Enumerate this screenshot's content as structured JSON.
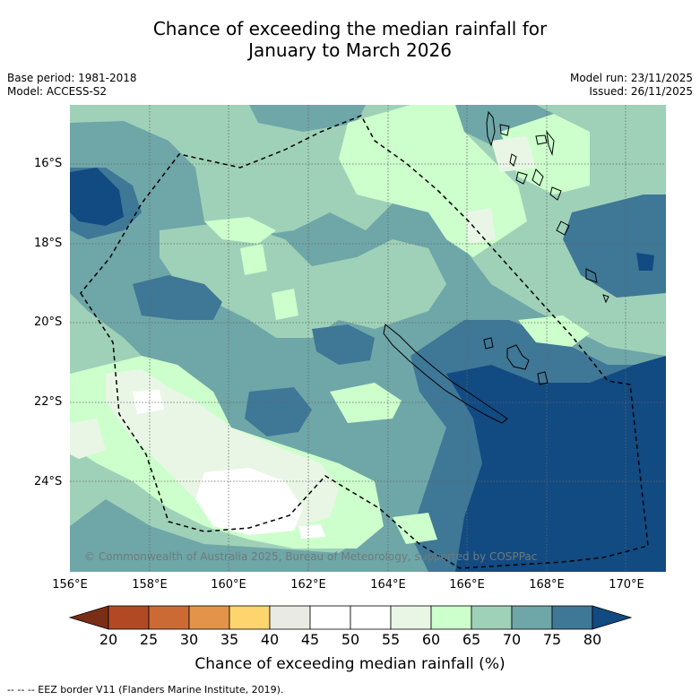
{
  "title": {
    "line1": "Chance of exceeding the median rainfall for",
    "line2": "January to March 2026"
  },
  "meta_left": {
    "base_period": "Base period: 1981-2018",
    "model": "Model: ACCESS-S2"
  },
  "meta_right": {
    "model_run": "Model run: 23/11/2025",
    "issued": "Issued: 26/11/2025"
  },
  "map": {
    "lat_labels": [
      "16°S",
      "18°S",
      "20°S",
      "22°S",
      "24°S"
    ],
    "lon_labels": [
      "156°E",
      "158°E",
      "160°E",
      "162°E",
      "164°E",
      "166°E",
      "168°E",
      "170°E"
    ],
    "copyright": "© Commonwealth of Australia 2025, Bureau of Meteorology, supported by COSPPac"
  },
  "colorbar": {
    "ticks": [
      "20",
      "25",
      "30",
      "35",
      "40",
      "45",
      "50",
      "55",
      "60",
      "65",
      "70",
      "75",
      "80"
    ],
    "colors": [
      "#7a2e16",
      "#b14a24",
      "#cc6a35",
      "#e3944a",
      "#fdd56e",
      "#eaeae4",
      "#ffffff",
      "#ffffff",
      "#e9f6e6",
      "#ccffcc",
      "#9fd1b8",
      "#6fa6a8",
      "#3f7796",
      "#124a82"
    ],
    "label": "Chance of exceeding median rainfall (%)"
  },
  "footnote": "--  --  -- EEZ border V11 (Flanders Marine Institute, 2019)."
}
